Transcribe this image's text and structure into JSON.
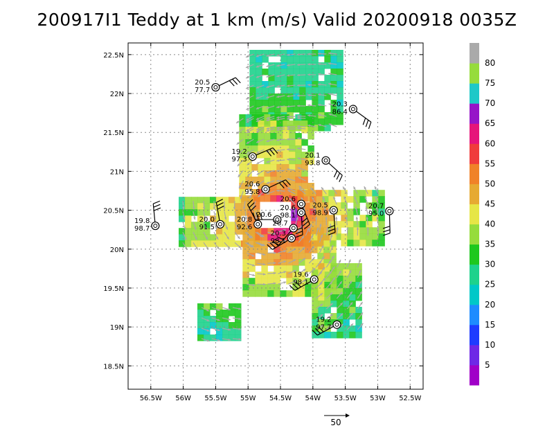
{
  "title": "200917I1 Teddy at 1 km (m/s) Valid 20200918 0035Z",
  "chart_data": {
    "type": "scatter",
    "xlim": [
      -56.85,
      -52.3
    ],
    "ylim": [
      18.2,
      22.65
    ],
    "x_ticks": [
      {
        "v": -56.5,
        "label": "56.5W"
      },
      {
        "v": -56.0,
        "label": "56W"
      },
      {
        "v": -55.5,
        "label": "55.5W"
      },
      {
        "v": -55.0,
        "label": "55W"
      },
      {
        "v": -54.5,
        "label": "54.5W"
      },
      {
        "v": -54.0,
        "label": "54W"
      },
      {
        "v": -53.5,
        "label": "53.5W"
      },
      {
        "v": -53.0,
        "label": "53W"
      },
      {
        "v": -52.5,
        "label": "52.5W"
      }
    ],
    "y_ticks": [
      {
        "v": 18.5,
        "label": "18.5N"
      },
      {
        "v": 19.0,
        "label": "19N"
      },
      {
        "v": 19.5,
        "label": "19.5N"
      },
      {
        "v": 20.0,
        "label": "20N"
      },
      {
        "v": 20.5,
        "label": "20.5N"
      },
      {
        "v": 21.0,
        "label": "21N"
      },
      {
        "v": 21.5,
        "label": "21.5N"
      },
      {
        "v": 22.0,
        "label": "22N"
      },
      {
        "v": 22.5,
        "label": "22.5N"
      }
    ],
    "grid": true,
    "center": {
      "lon": -54.55,
      "lat": 20.45
    },
    "colorbar": {
      "labels": [
        "5",
        "10",
        "15",
        "20",
        "25",
        "30",
        "35",
        "40",
        "45",
        "50",
        "55",
        "60",
        "65",
        "70",
        "75",
        "80"
      ],
      "colors": [
        "#a000c8",
        "#6e28e6",
        "#1e3cff",
        "#1e8cff",
        "#00c8c8",
        "#1ed28c",
        "#1ec81e",
        "#96dc3c",
        "#e6e646",
        "#e6aa32",
        "#f08228",
        "#f03c3c",
        "#e6147a",
        "#9614c8",
        "#1ec8c8",
        "#96dc3c",
        "#aaaaaa"
      ]
    },
    "dropsondes": [
      {
        "lon": -55.5,
        "lat": 22.08,
        "l1": "20.5",
        "l2": "77.7"
      },
      {
        "lon": -53.38,
        "lat": 21.8,
        "l1": "20.3",
        "l2": "86.4"
      },
      {
        "lon": -54.93,
        "lat": 21.19,
        "l1": "19.2",
        "l2": "97.3"
      },
      {
        "lon": -53.8,
        "lat": 21.14,
        "l1": "20.1",
        "l2": "93.8"
      },
      {
        "lon": -54.73,
        "lat": 20.77,
        "l1": "20.6",
        "l2": "95.8"
      },
      {
        "lon": -54.18,
        "lat": 20.58,
        "l1": "20.6",
        "l2": ""
      },
      {
        "lon": -54.18,
        "lat": 20.47,
        "l1": "20.6",
        "l2": "98.1"
      },
      {
        "lon": -53.68,
        "lat": 20.5,
        "l1": "20.5",
        "l2": "98.9"
      },
      {
        "lon": -52.82,
        "lat": 20.49,
        "l1": "20.7",
        "l2": "95.0"
      },
      {
        "lon": -56.43,
        "lat": 20.3,
        "l1": "19.8",
        "l2": "98.7"
      },
      {
        "lon": -55.43,
        "lat": 20.32,
        "l1": "20.0",
        "l2": "91.5"
      },
      {
        "lon": -54.85,
        "lat": 20.32,
        "l1": "20.8",
        "l2": "92.6"
      },
      {
        "lon": -54.55,
        "lat": 20.38,
        "l1": "20.6",
        "l2": ""
      },
      {
        "lon": -54.3,
        "lat": 20.27,
        "l1": "20.7",
        "l2": ""
      },
      {
        "lon": -54.33,
        "lat": 20.14,
        "l1": "20.3",
        "l2": "98.1"
      },
      {
        "lon": -53.98,
        "lat": 19.61,
        "l1": "19.6",
        "l2": "98.1"
      },
      {
        "lon": -53.63,
        "lat": 19.03,
        "l1": "19.2",
        "l2": "97.7"
      }
    ],
    "reference_vector": {
      "label": "50"
    }
  }
}
